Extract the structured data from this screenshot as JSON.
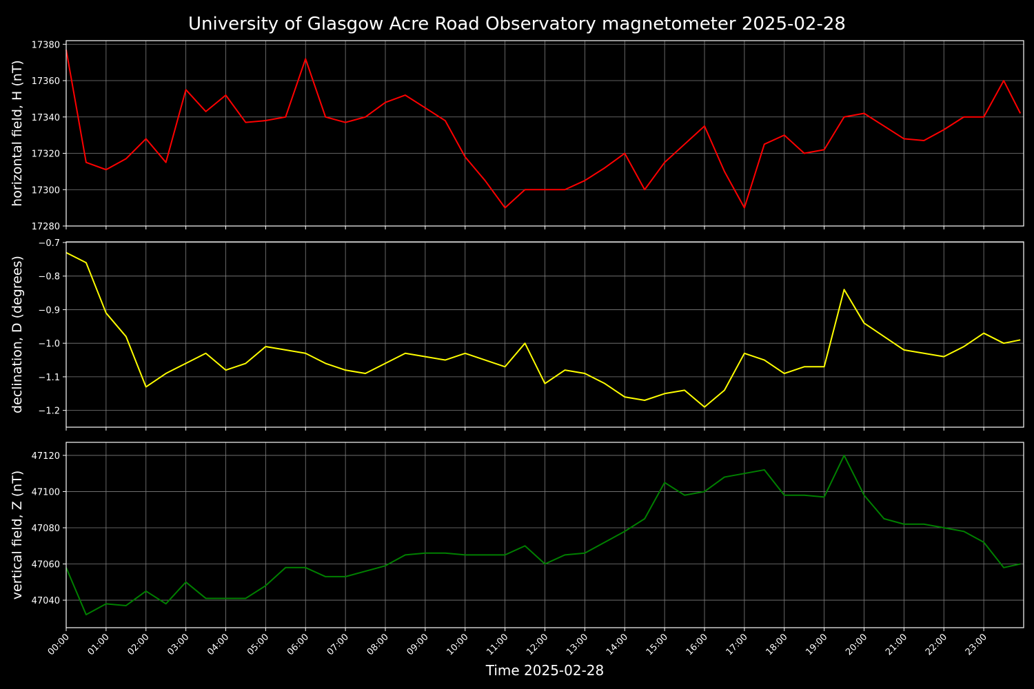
{
  "chart_data": [
    {
      "type": "line",
      "title": "University of Glasgow Acre Road Observatory magnetometer 2025-02-28",
      "ylabel": "horizontal field, H (nT)",
      "color": "#ff0000",
      "x": [
        "00:00",
        "00:30",
        "01:00",
        "01:30",
        "02:00",
        "02:30",
        "03:00",
        "03:30",
        "04:00",
        "04:30",
        "05:00",
        "05:30",
        "06:00",
        "06:30",
        "07:00",
        "07:30",
        "08:00",
        "08:30",
        "09:00",
        "09:30",
        "10:00",
        "10:30",
        "11:00",
        "11:30",
        "12:00",
        "12:30",
        "13:00",
        "13:30",
        "14:00",
        "14:30",
        "15:00",
        "15:30",
        "16:00",
        "16:30",
        "17:00",
        "17:30",
        "18:00",
        "18:30",
        "19:00",
        "19:30",
        "20:00",
        "20:30",
        "21:00",
        "21:30",
        "22:00",
        "22:30",
        "23:00",
        "23:30",
        "23:55"
      ],
      "values": [
        17377,
        17315,
        17311,
        17317,
        17328,
        17315,
        17355,
        17343,
        17352,
        17337,
        17338,
        17340,
        17372,
        17340,
        17337,
        17340,
        17348,
        17352,
        17345,
        17338,
        17318,
        17305,
        17290,
        17300,
        17300,
        17300,
        17305,
        17312,
        17320,
        17300,
        17315,
        17325,
        17335,
        17310,
        17290,
        17325,
        17330,
        17320,
        17322,
        17340,
        17342,
        17335,
        17328,
        17327,
        17333,
        17340,
        17340,
        17360,
        17342
      ],
      "xlim": [
        "00:00",
        "24:00"
      ],
      "ylim": [
        17280,
        17382
      ],
      "yticks": [
        17280,
        17300,
        17320,
        17340,
        17360,
        17380
      ],
      "grid": true
    },
    {
      "type": "line",
      "ylabel": "declination, D (degrees)",
      "color": "#ffff00",
      "x": [
        "00:00",
        "00:30",
        "01:00",
        "01:30",
        "02:00",
        "02:30",
        "03:00",
        "03:30",
        "04:00",
        "04:30",
        "05:00",
        "05:30",
        "06:00",
        "06:30",
        "07:00",
        "07:30",
        "08:00",
        "08:30",
        "09:00",
        "09:30",
        "10:00",
        "10:30",
        "11:00",
        "11:30",
        "12:00",
        "12:30",
        "13:00",
        "13:30",
        "14:00",
        "14:30",
        "15:00",
        "15:30",
        "16:00",
        "16:30",
        "17:00",
        "17:30",
        "18:00",
        "18:30",
        "19:00",
        "19:30",
        "20:00",
        "20:30",
        "21:00",
        "21:30",
        "22:00",
        "22:30",
        "23:00",
        "23:30",
        "23:55"
      ],
      "values": [
        -0.73,
        -0.76,
        -0.91,
        -0.98,
        -1.13,
        -1.09,
        -1.06,
        -1.03,
        -1.08,
        -1.06,
        -1.01,
        -1.02,
        -1.03,
        -1.06,
        -1.08,
        -1.09,
        -1.06,
        -1.03,
        -1.04,
        -1.05,
        -1.03,
        -1.05,
        -1.07,
        -1.0,
        -1.12,
        -1.08,
        -1.09,
        -1.12,
        -1.16,
        -1.17,
        -1.15,
        -1.14,
        -1.19,
        -1.14,
        -1.03,
        -1.05,
        -1.09,
        -1.07,
        -1.07,
        -0.84,
        -0.94,
        -0.98,
        -1.02,
        -1.03,
        -1.04,
        -1.01,
        -0.97,
        -1.0,
        -0.99
      ],
      "xlim": [
        "00:00",
        "24:00"
      ],
      "ylim": [
        -1.25,
        -0.698
      ],
      "yticks": [
        {
          "value": -1.2,
          "label": "−1.2"
        },
        {
          "value": -1.1,
          "label": "−1.1"
        },
        {
          "value": -1.0,
          "label": "−1.0"
        },
        {
          "value": -0.9,
          "label": "−0.9"
        },
        {
          "value": -0.8,
          "label": "−0.8"
        },
        {
          "value": -0.7,
          "label": "−0.7"
        }
      ],
      "grid": true
    },
    {
      "type": "line",
      "ylabel": "vertical field, Z (nT)",
      "xlabel": "Time 2025-02-28",
      "color": "#008000",
      "x": [
        "00:00",
        "00:30",
        "01:00",
        "01:30",
        "02:00",
        "02:30",
        "03:00",
        "03:30",
        "04:00",
        "04:30",
        "05:00",
        "05:30",
        "06:00",
        "06:30",
        "07:00",
        "07:30",
        "08:00",
        "08:30",
        "09:00",
        "09:30",
        "10:00",
        "10:30",
        "11:00",
        "11:30",
        "12:00",
        "12:30",
        "13:00",
        "13:30",
        "14:00",
        "14:30",
        "15:00",
        "15:30",
        "16:00",
        "16:30",
        "17:00",
        "17:30",
        "18:00",
        "18:30",
        "19:00",
        "19:30",
        "20:00",
        "20:30",
        "21:00",
        "21:30",
        "22:00",
        "22:30",
        "23:00",
        "23:30",
        "23:55"
      ],
      "values": [
        47058,
        47032,
        47038,
        47037,
        47045,
        47038,
        47050,
        47041,
        47041,
        47041,
        47048,
        47058,
        47058,
        47053,
        47053,
        47056,
        47059,
        47065,
        47066,
        47066,
        47065,
        47065,
        47065,
        47070,
        47060,
        47065,
        47066,
        47072,
        47078,
        47085,
        47105,
        47098,
        47100,
        47108,
        47110,
        47112,
        47098,
        47098,
        47097,
        47120,
        47098,
        47085,
        47082,
        47082,
        47080,
        47078,
        47072,
        47058,
        47060
      ],
      "xlim": [
        "00:00",
        "24:00"
      ],
      "ylim": [
        47024.8,
        47127.2
      ],
      "yticks": [
        47040,
        47060,
        47080,
        47100,
        47120
      ],
      "xticks": [
        "00:00",
        "01:00",
        "02:00",
        "03:00",
        "04:00",
        "05:00",
        "06:00",
        "07:00",
        "08:00",
        "09:00",
        "10:00",
        "11:00",
        "12:00",
        "13:00",
        "14:00",
        "15:00",
        "16:00",
        "17:00",
        "18:00",
        "19:00",
        "20:00",
        "21:00",
        "22:00",
        "23:00"
      ],
      "grid": true
    }
  ]
}
